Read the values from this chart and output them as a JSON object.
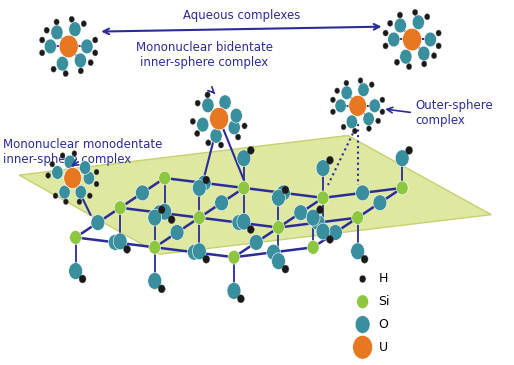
{
  "colors": {
    "H": "#1a1a1a",
    "Si": "#8dc63f",
    "O": "#3a8f9e",
    "U": "#e87722",
    "bond": "#2b2b9a",
    "surface": "#dfe8a0",
    "surface_edge": "#c8d070",
    "text": "#2b2b9a",
    "background": "#ffffff"
  },
  "labels": {
    "aqueous": "Aqueous complexes",
    "bidentate": "Mononuclear bidentate\ninner-sphere complex",
    "monodentate": "Mononuclear monodentate\ninner-sphere complex",
    "outer": "Outer-sphere\ncomplex"
  },
  "figsize": [
    5.14,
    3.65
  ],
  "dpi": 100
}
